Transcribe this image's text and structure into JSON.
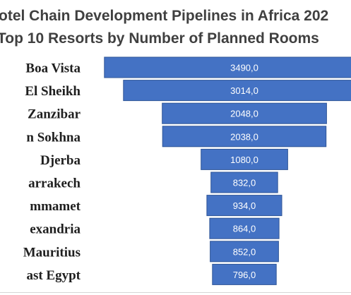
{
  "title_line1": "otel Chain Development Pipelines in Africa 202",
  "title_line2": "Top 10 Resorts by Number of Planned Rooms",
  "chart_data": {
    "type": "bar",
    "orientation": "horizontal",
    "style": "funnel",
    "categories": [
      "Boa Vista",
      "El Sheikh",
      "Zanzibar",
      "n Sokhna",
      "Djerba",
      "arrakech",
      "mmamet",
      "exandria",
      "Mauritius",
      "ast Egypt"
    ],
    "values": [
      3490,
      3014,
      2048,
      2038,
      1080,
      832,
      934,
      864,
      852,
      796
    ],
    "value_labels": [
      "3490,0",
      "3014,0",
      "2048,0",
      "2038,0",
      "1080,0",
      "832,0",
      "934,0",
      "864,0",
      "852,0",
      "796,0"
    ],
    "bar_color": "#4472c4",
    "bar_edge_color": "#2f5597"
  }
}
